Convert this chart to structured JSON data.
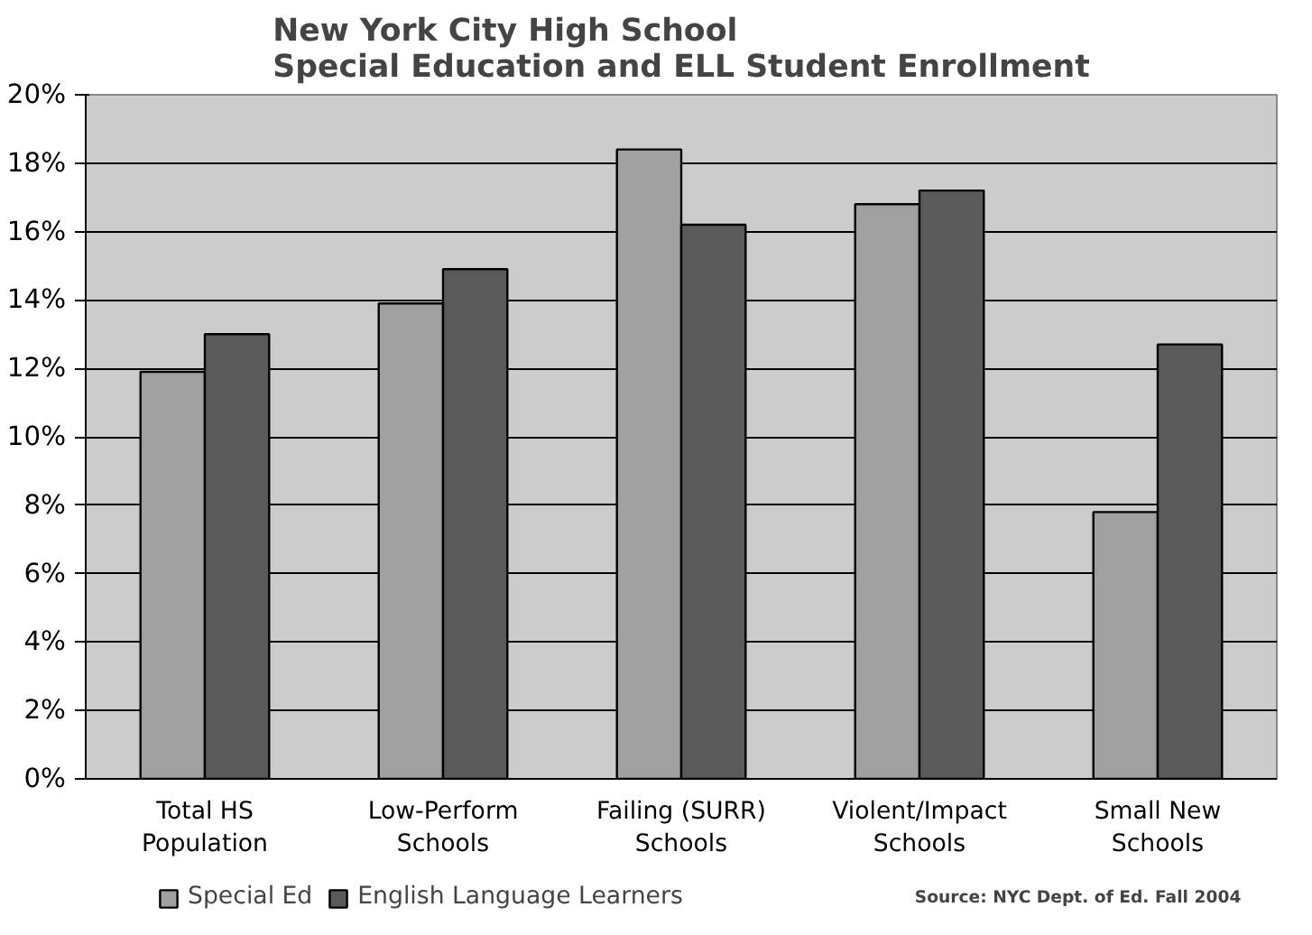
{
  "chart_data": {
    "type": "bar",
    "title": "New York City High School\nSpecial Education and ELL Student Enrollment",
    "categories": [
      "Total HS Population",
      "Low-Perform Schools",
      "Failing (SURR) Schools",
      "Violent/Impact Schools",
      "Small New Schools"
    ],
    "series": [
      {
        "name": "Special Ed",
        "color": "#a0a0a0",
        "values": [
          11.9,
          13.9,
          18.4,
          16.8,
          7.8
        ]
      },
      {
        "name": "English Language Learners",
        "color": "#5a5a5a",
        "values": [
          13.0,
          14.9,
          16.2,
          17.2,
          12.7
        ]
      }
    ],
    "ylim": [
      0,
      20
    ],
    "yticks": [
      {
        "value": 0,
        "label": "0%"
      },
      {
        "value": 2,
        "label": "2%"
      },
      {
        "value": 4,
        "label": "4%"
      },
      {
        "value": 6,
        "label": "6%"
      },
      {
        "value": 8,
        "label": "8%"
      },
      {
        "value": 10,
        "label": "10%"
      },
      {
        "value": 12,
        "label": "12%"
      },
      {
        "value": 14,
        "label": "14%"
      },
      {
        "value": 16,
        "label": "16%"
      },
      {
        "value": 18,
        "label": "18%"
      },
      {
        "value": 20,
        "label": "20%"
      }
    ],
    "grid": "y",
    "legend": "bottom",
    "annotations": [
      "Source: NYC Dept. of Ed. Fall 2004"
    ]
  }
}
